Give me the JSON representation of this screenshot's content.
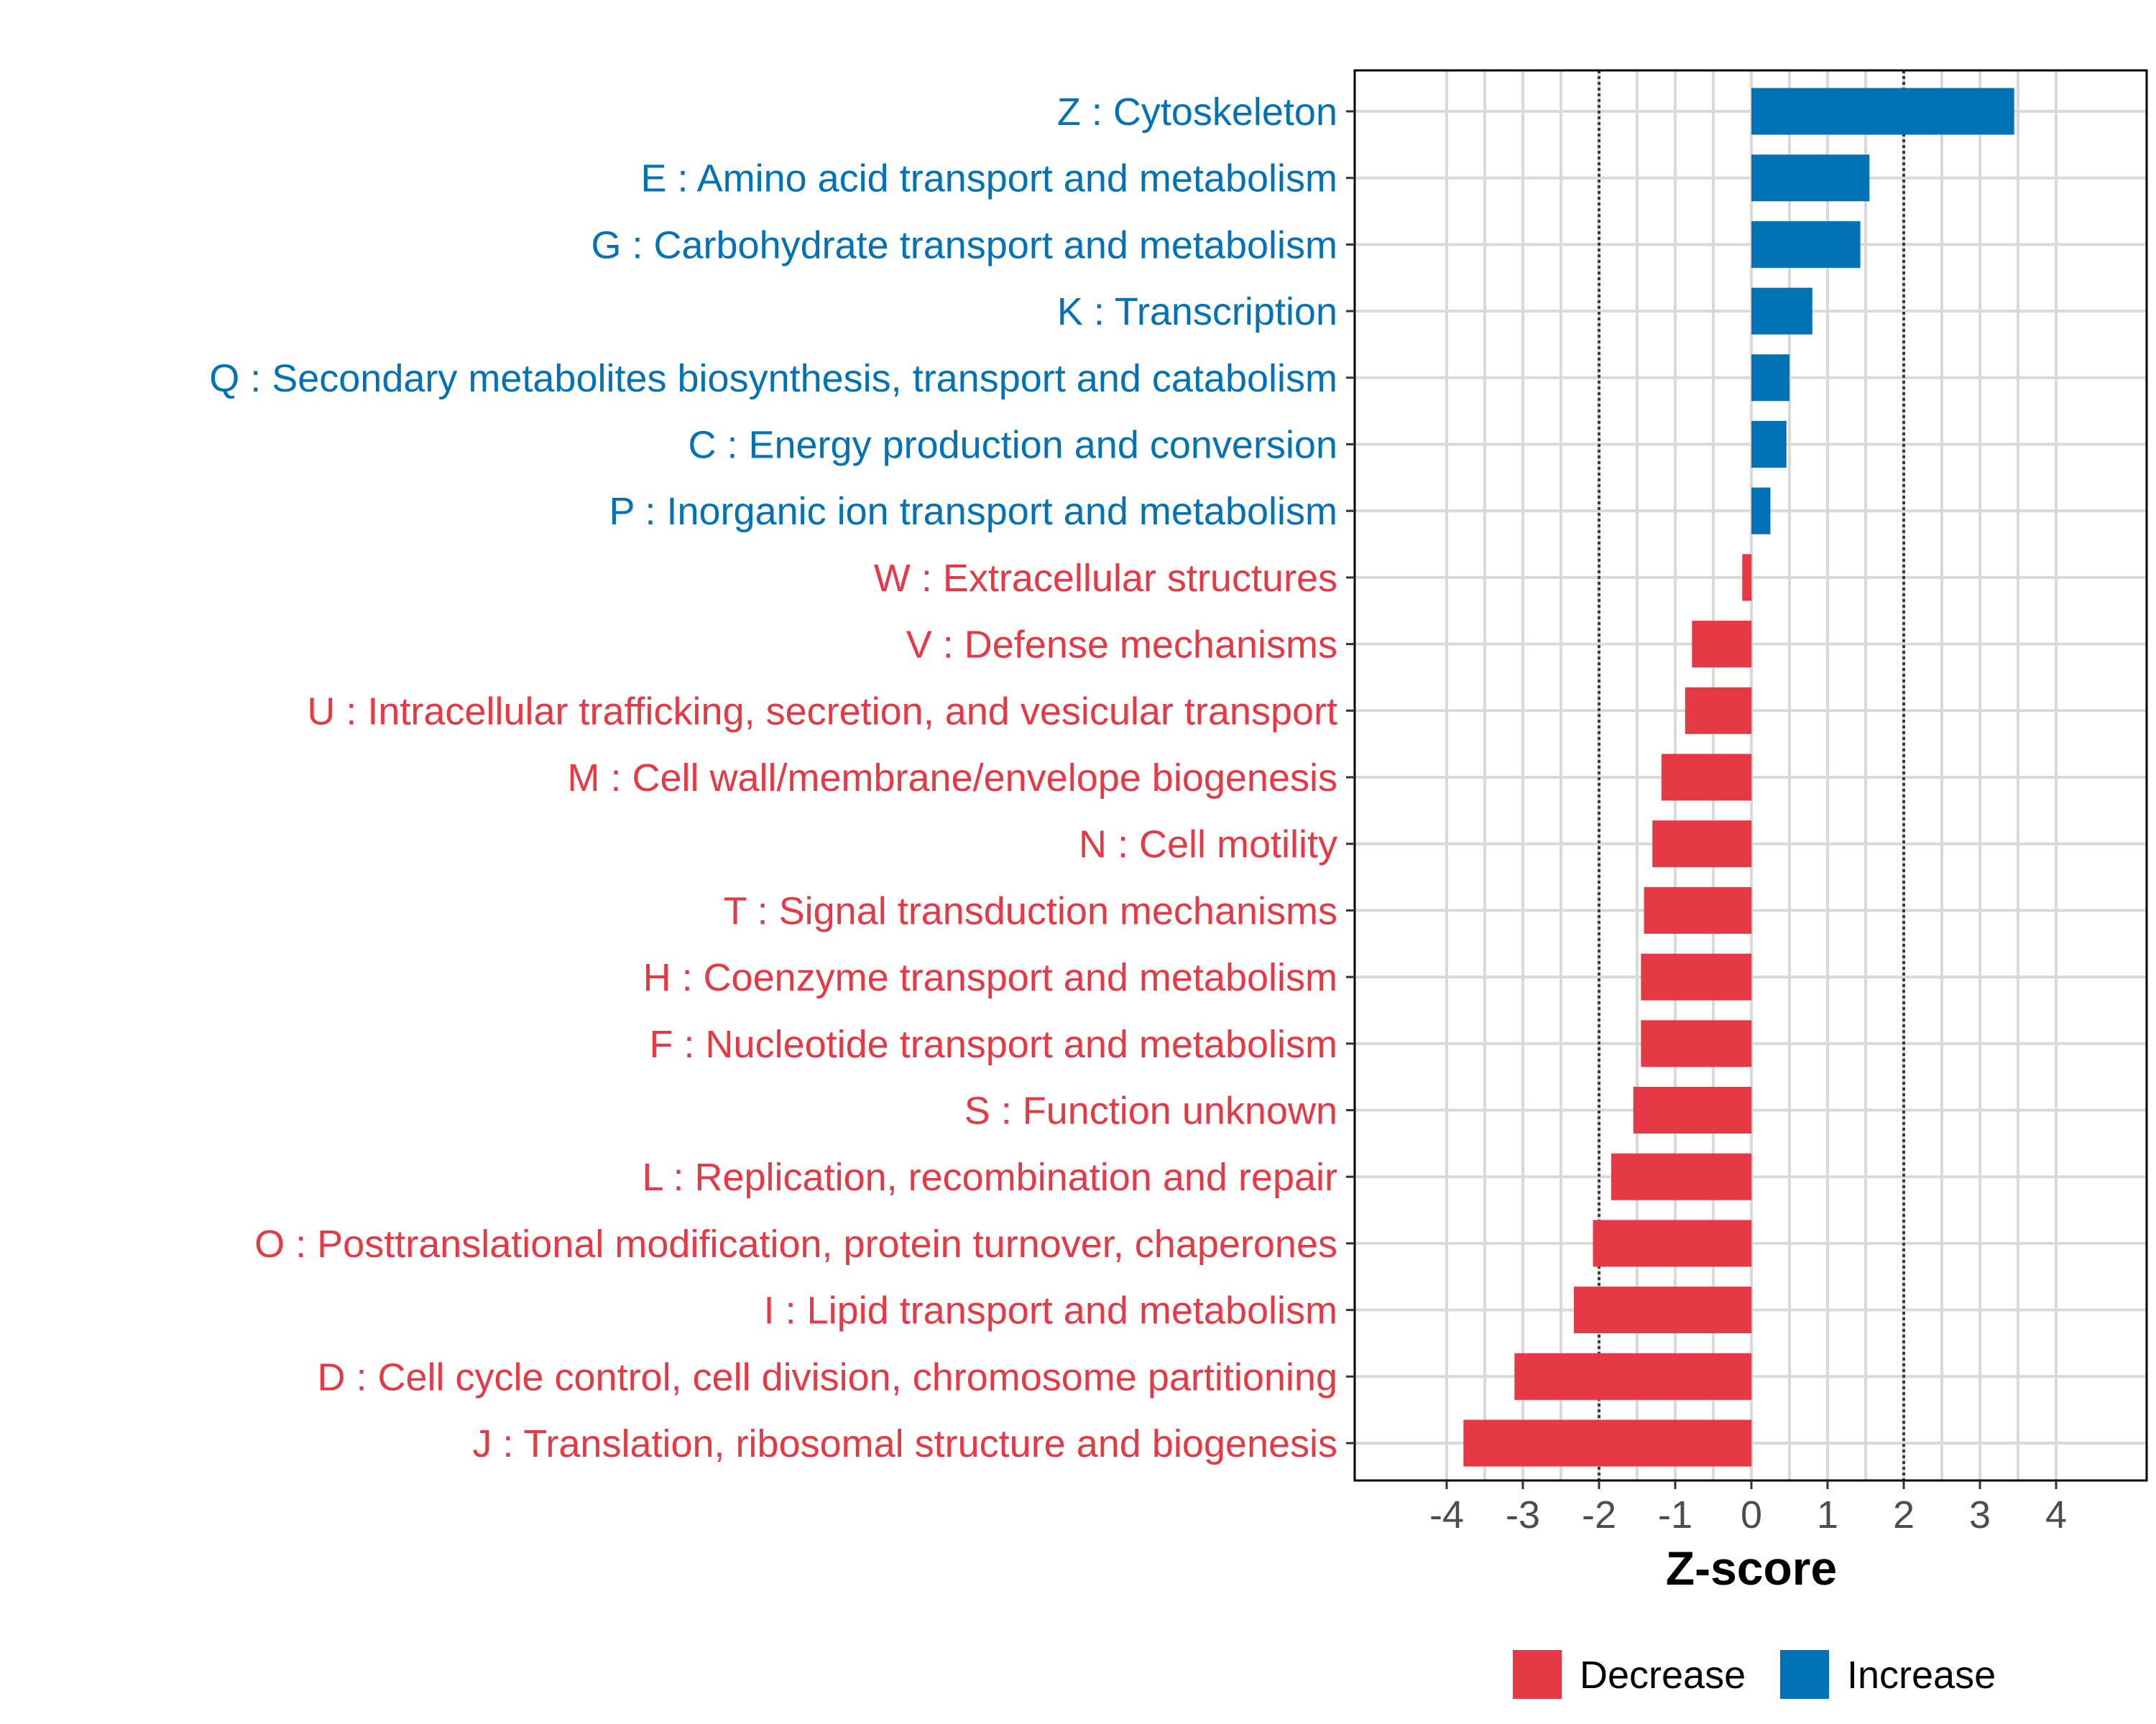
{
  "chart_data": {
    "type": "bar",
    "orientation": "horizontal",
    "xlabel": "Z-score",
    "ylabel": "",
    "xlim": [
      -5.2,
      5.2
    ],
    "xticks": [
      -4,
      -3,
      -2,
      -1,
      0,
      1,
      2,
      3,
      4
    ],
    "reference_lines": [
      -2,
      2
    ],
    "grid": true,
    "colors": {
      "Increase": "#0072b5",
      "Decrease": "#e63946"
    },
    "legend": {
      "placement": "bottom",
      "entries": [
        {
          "label": "Decrease",
          "color": "#e63946"
        },
        {
          "label": "Increase",
          "color": "#0072b5"
        }
      ]
    },
    "bars": [
      {
        "label": "Z : Cytoskeleton",
        "value": 3.45,
        "group": "Increase"
      },
      {
        "label": "E : Amino acid transport and metabolism",
        "value": 1.55,
        "group": "Increase"
      },
      {
        "label": "G : Carbohydrate transport and metabolism",
        "value": 1.43,
        "group": "Increase"
      },
      {
        "label": "K : Transcription",
        "value": 0.8,
        "group": "Increase"
      },
      {
        "label": "Q : Secondary metabolites biosynthesis, transport and catabolism",
        "value": 0.5,
        "group": "Increase"
      },
      {
        "label": "C : Energy production and conversion",
        "value": 0.46,
        "group": "Increase"
      },
      {
        "label": "P : Inorganic ion transport and metabolism",
        "value": 0.25,
        "group": "Increase"
      },
      {
        "label": "W : Extracellular structures",
        "value": -0.12,
        "group": "Decrease"
      },
      {
        "label": "V : Defense mechanisms",
        "value": -0.78,
        "group": "Decrease"
      },
      {
        "label": "U : Intracellular trafficking, secretion, and vesicular transport",
        "value": -0.87,
        "group": "Decrease"
      },
      {
        "label": "M : Cell wall/membrane/envelope biogenesis",
        "value": -1.18,
        "group": "Decrease"
      },
      {
        "label": "N : Cell motility",
        "value": -1.3,
        "group": "Decrease"
      },
      {
        "label": "T : Signal transduction mechanisms",
        "value": -1.41,
        "group": "Decrease"
      },
      {
        "label": "H : Coenzyme transport and metabolism",
        "value": -1.45,
        "group": "Decrease"
      },
      {
        "label": "F : Nucleotide transport and metabolism",
        "value": -1.45,
        "group": "Decrease"
      },
      {
        "label": "S : Function unknown",
        "value": -1.55,
        "group": "Decrease"
      },
      {
        "label": "L : Replication, recombination and repair",
        "value": -1.84,
        "group": "Decrease"
      },
      {
        "label": "O : Posttranslational modification, protein turnover, chaperones",
        "value": -2.08,
        "group": "Decrease"
      },
      {
        "label": "I : Lipid transport and metabolism",
        "value": -2.33,
        "group": "Decrease"
      },
      {
        "label": "D : Cell cycle control, cell division, chromosome partitioning",
        "value": -3.11,
        "group": "Decrease"
      },
      {
        "label": "J : Translation, ribosomal structure and biogenesis",
        "value": -3.78,
        "group": "Decrease"
      }
    ]
  }
}
